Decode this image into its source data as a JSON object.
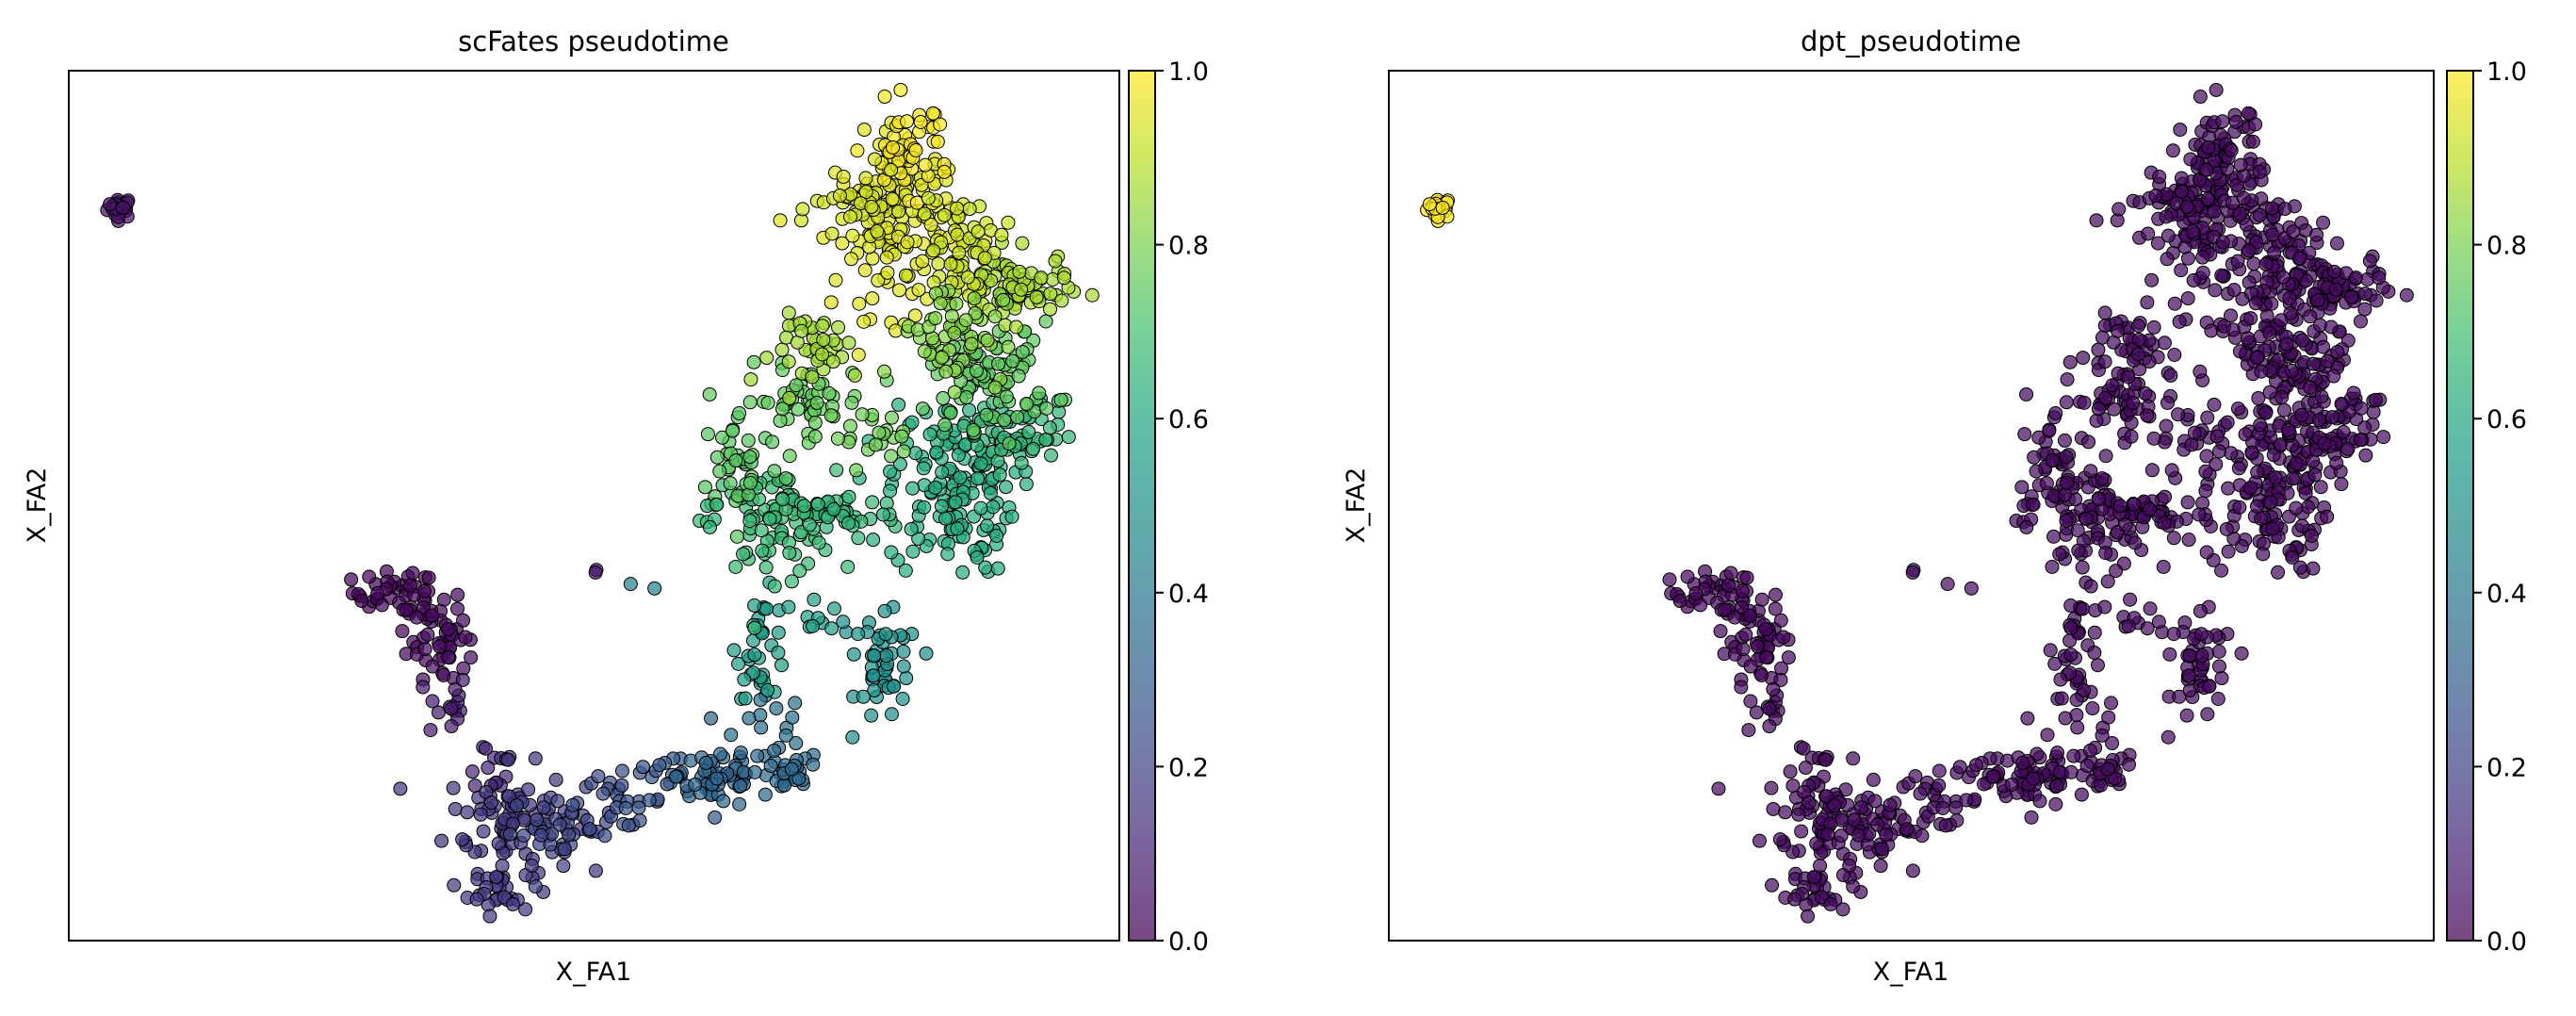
{
  "chart_data": [
    {
      "type": "scatter",
      "title": "scFates pseudotime",
      "xlabel": "X_FA1",
      "ylabel": "X_FA2",
      "color_key": "scfates",
      "colorbar": {
        "ticks": [
          "0.0",
          "0.2",
          "0.4",
          "0.6",
          "0.8",
          "1.0"
        ],
        "range": [
          0,
          1
        ],
        "cmap": "viridis"
      }
    },
    {
      "type": "scatter",
      "title": "dpt_pseudotime",
      "xlabel": "X_FA1",
      "ylabel": "X_FA2",
      "color_key": "dpt",
      "colorbar": {
        "ticks": [
          "0.0",
          "0.2",
          "0.4",
          "0.6",
          "0.8",
          "1.0"
        ],
        "range": [
          0,
          1
        ],
        "cmap": "viridis"
      }
    }
  ],
  "point_clusters": [
    {
      "x": 4.9,
      "y": 84.3,
      "sx": 0.6,
      "sy": 0.6,
      "n": 25,
      "scfates": 0.05,
      "dpt": 1.0
    },
    {
      "x": 31,
      "y": 40,
      "sx": 2,
      "sy": 1.2,
      "n": 30,
      "scfates": 0.01,
      "dpt": 0.02
    },
    {
      "x": 34,
      "y": 36,
      "sx": 2,
      "sy": 2.5,
      "n": 40,
      "scfates": 0.02,
      "dpt": 0.02
    },
    {
      "x": 36,
      "y": 33,
      "sx": 1.2,
      "sy": 2,
      "n": 20,
      "scfates": 0.04,
      "dpt": 0.02
    },
    {
      "x": 36,
      "y": 27,
      "sx": 1,
      "sy": 2,
      "n": 15,
      "scfates": 0.08,
      "dpt": 0.03
    },
    {
      "x": 40,
      "y": 20,
      "sx": 1.5,
      "sy": 2,
      "n": 15,
      "scfates": 0.12,
      "dpt": 0.03
    },
    {
      "x": 42,
      "y": 14,
      "sx": 3,
      "sy": 3,
      "n": 70,
      "scfates": 0.16,
      "dpt": 0.03
    },
    {
      "x": 41,
      "y": 6,
      "sx": 1.5,
      "sy": 1.5,
      "n": 30,
      "scfates": 0.17,
      "dpt": 0.03
    },
    {
      "x": 47,
      "y": 13,
      "sx": 2.5,
      "sy": 2,
      "n": 40,
      "scfates": 0.2,
      "dpt": 0.03
    },
    {
      "x": 52,
      "y": 16,
      "sx": 2.5,
      "sy": 1.5,
      "n": 25,
      "scfates": 0.24,
      "dpt": 0.03
    },
    {
      "x": 57,
      "y": 18,
      "sx": 2,
      "sy": 1.5,
      "n": 20,
      "scfates": 0.28,
      "dpt": 0.03
    },
    {
      "x": 62,
      "y": 19,
      "sx": 2,
      "sy": 2,
      "n": 50,
      "scfates": 0.33,
      "dpt": 0.03
    },
    {
      "x": 68,
      "y": 19,
      "sx": 1.8,
      "sy": 1.5,
      "n": 30,
      "scfates": 0.34,
      "dpt": 0.03
    },
    {
      "x": 67,
      "y": 25,
      "sx": 1.5,
      "sy": 1.5,
      "n": 12,
      "scfates": 0.37,
      "dpt": 0.03
    },
    {
      "x": 78,
      "y": 31,
      "sx": 1.5,
      "sy": 3,
      "n": 40,
      "scfates": 0.5,
      "dpt": 0.03
    },
    {
      "x": 76,
      "y": 35,
      "sx": 1.5,
      "sy": 1.5,
      "n": 10,
      "scfates": 0.5,
      "dpt": 0.03
    },
    {
      "x": 66,
      "y": 34,
      "sx": 1.2,
      "sy": 3,
      "n": 35,
      "scfates": 0.55,
      "dpt": 0.03
    },
    {
      "x": 70,
      "y": 37,
      "sx": 2,
      "sy": 2,
      "n": 8,
      "scfates": 0.56,
      "dpt": 0.03
    },
    {
      "x": 67,
      "y": 48,
      "sx": 3,
      "sy": 3,
      "n": 80,
      "scfates": 0.68,
      "dpt": 0.03
    },
    {
      "x": 73,
      "y": 49,
      "sx": 3,
      "sy": 1.5,
      "n": 40,
      "scfates": 0.66,
      "dpt": 0.03
    },
    {
      "x": 64,
      "y": 55,
      "sx": 2,
      "sy": 3,
      "n": 40,
      "scfates": 0.74,
      "dpt": 0.03
    },
    {
      "x": 84,
      "y": 52,
      "sx": 3,
      "sy": 5,
      "n": 150,
      "scfates": 0.62,
      "dpt": 0.03
    },
    {
      "x": 90,
      "y": 58,
      "sx": 3,
      "sy": 2,
      "n": 60,
      "scfates": 0.66,
      "dpt": 0.03
    },
    {
      "x": 88,
      "y": 65,
      "sx": 3,
      "sy": 3,
      "n": 80,
      "scfates": 0.75,
      "dpt": 0.03
    },
    {
      "x": 70,
      "y": 62,
      "sx": 3,
      "sy": 2,
      "n": 50,
      "scfates": 0.76,
      "dpt": 0.03
    },
    {
      "x": 76,
      "y": 58,
      "sx": 2,
      "sy": 1.5,
      "n": 20,
      "scfates": 0.78,
      "dpt": 0.03
    },
    {
      "x": 72,
      "y": 68,
      "sx": 2.5,
      "sy": 2,
      "n": 40,
      "scfates": 0.86,
      "dpt": 0.03
    },
    {
      "x": 79,
      "y": 82,
      "sx": 3,
      "sy": 5,
      "n": 150,
      "scfates": 0.95,
      "dpt": 0.03
    },
    {
      "x": 80,
      "y": 91,
      "sx": 2,
      "sy": 2.5,
      "n": 50,
      "scfates": 0.99,
      "dpt": 0.03
    },
    {
      "x": 75,
      "y": 84,
      "sx": 2,
      "sy": 2,
      "n": 30,
      "scfates": 0.93,
      "dpt": 0.03
    },
    {
      "x": 90,
      "y": 75,
      "sx": 2.5,
      "sy": 2,
      "n": 80,
      "scfates": 0.87,
      "dpt": 0.03
    },
    {
      "x": 85,
      "y": 80,
      "sx": 2,
      "sy": 3,
      "n": 50,
      "scfates": 0.92,
      "dpt": 0.03
    },
    {
      "x": 84,
      "y": 70,
      "sx": 2.5,
      "sy": 3,
      "n": 60,
      "scfates": 0.82,
      "dpt": 0.03
    },
    {
      "x": 50,
      "y": 42,
      "sx": 0.4,
      "sy": 0.4,
      "n": 2,
      "scfates": 0.06,
      "dpt": 0.03
    },
    {
      "x": 57,
      "y": 41,
      "sx": 1.5,
      "sy": 0.3,
      "n": 2,
      "scfates": 0.45,
      "dpt": 0.03
    },
    {
      "x": 61,
      "y": 49,
      "sx": 1,
      "sy": 1,
      "n": 4,
      "scfates": 0.65,
      "dpt": 0.03
    }
  ],
  "colors": {
    "edge": "#000000",
    "axis": "#000000"
  }
}
